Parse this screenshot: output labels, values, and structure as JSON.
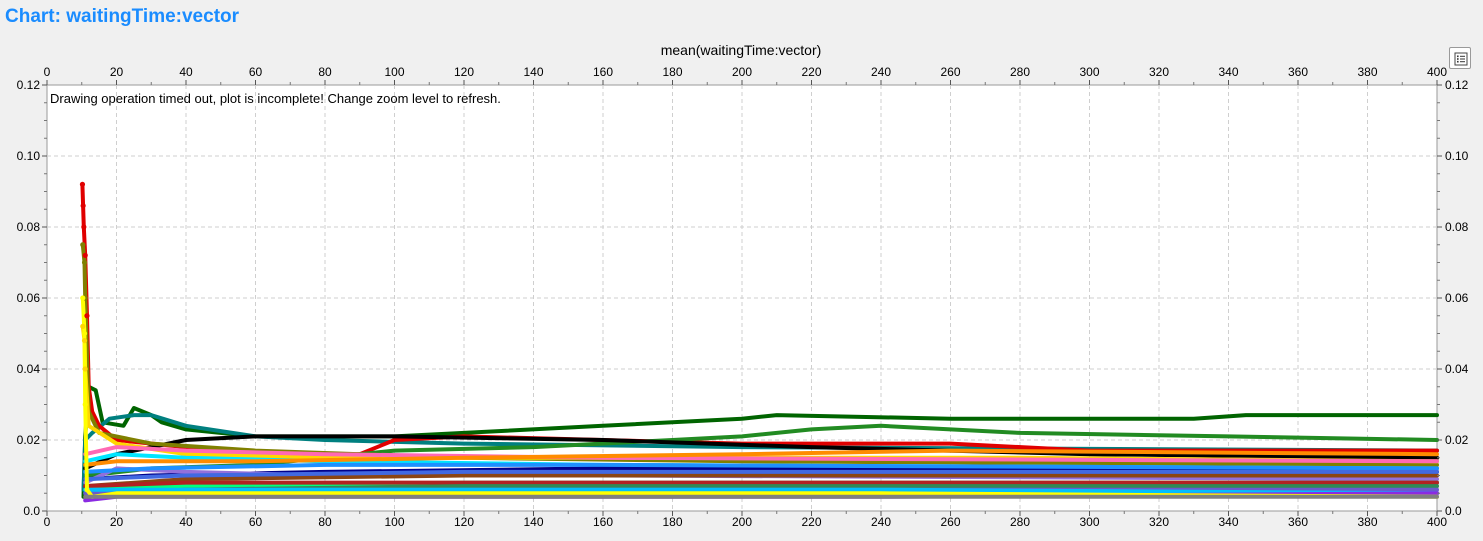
{
  "header": {
    "title": "Chart: waitingTime:vector"
  },
  "toolbar": {
    "legend_toggle_icon": "legend-list-icon"
  },
  "chart_data": {
    "type": "line",
    "title": "mean(waitingTime:vector)",
    "xlabel": "",
    "ylabel": "",
    "xlim": [
      0,
      400
    ],
    "ylim": [
      0,
      0.12
    ],
    "x_ticks": [
      0,
      20,
      40,
      60,
      80,
      100,
      120,
      140,
      160,
      180,
      200,
      220,
      240,
      260,
      280,
      300,
      320,
      340,
      360,
      380,
      400
    ],
    "y_ticks": [
      "0.0",
      "0.02",
      "0.04",
      "0.06",
      "0.08",
      "0.10",
      "0.12"
    ],
    "grid": true,
    "annotation": "Drawing operation timed out, plot is incomplete! Change zoom level to refresh.",
    "series": [
      {
        "color": "#006400",
        "points": [
          [
            10.5,
            0.004
          ],
          [
            11,
            0.021
          ],
          [
            12,
            0.035
          ],
          [
            14,
            0.034
          ],
          [
            16,
            0.025
          ],
          [
            22,
            0.024
          ],
          [
            25,
            0.029
          ],
          [
            30,
            0.027
          ],
          [
            33,
            0.025
          ],
          [
            40,
            0.023
          ],
          [
            60,
            0.021
          ],
          [
            100,
            0.021
          ],
          [
            120,
            0.022
          ],
          [
            160,
            0.024
          ],
          [
            200,
            0.026
          ],
          [
            210,
            0.027
          ],
          [
            260,
            0.026
          ],
          [
            330,
            0.026
          ],
          [
            345,
            0.027
          ],
          [
            400,
            0.027
          ]
        ]
      },
      {
        "color": "#008080",
        "points": [
          [
            10.5,
            0.006
          ],
          [
            11,
            0.02
          ],
          [
            13,
            0.022
          ],
          [
            18,
            0.026
          ],
          [
            25,
            0.027
          ],
          [
            30,
            0.027
          ],
          [
            40,
            0.024
          ],
          [
            60,
            0.021
          ],
          [
            80,
            0.02
          ],
          [
            120,
            0.019
          ],
          [
            200,
            0.018
          ],
          [
            400,
            0.017
          ]
        ]
      },
      {
        "color": "#e00000",
        "points": [
          [
            10.2,
            0.092
          ],
          [
            10.4,
            0.086
          ],
          [
            10.6,
            0.08
          ],
          [
            11,
            0.072
          ],
          [
            11.5,
            0.055
          ],
          [
            12,
            0.035
          ],
          [
            13,
            0.028
          ],
          [
            15,
            0.024
          ],
          [
            20,
            0.02
          ],
          [
            40,
            0.018
          ],
          [
            60,
            0.016
          ],
          [
            90,
            0.016
          ],
          [
            100,
            0.02
          ],
          [
            120,
            0.021
          ],
          [
            160,
            0.02
          ],
          [
            200,
            0.019
          ],
          [
            260,
            0.019
          ],
          [
            300,
            0.017
          ],
          [
            400,
            0.017
          ]
        ]
      },
      {
        "color": "#228B22",
        "points": [
          [
            12,
            0.01
          ],
          [
            30,
            0.012
          ],
          [
            60,
            0.013
          ],
          [
            100,
            0.017
          ],
          [
            140,
            0.018
          ],
          [
            180,
            0.02
          ],
          [
            200,
            0.021
          ],
          [
            220,
            0.023
          ],
          [
            240,
            0.024
          ],
          [
            260,
            0.023
          ],
          [
            280,
            0.022
          ],
          [
            340,
            0.021
          ],
          [
            400,
            0.02
          ]
        ]
      },
      {
        "color": "#000000",
        "points": [
          [
            11,
            0.012
          ],
          [
            20,
            0.016
          ],
          [
            40,
            0.02
          ],
          [
            60,
            0.021
          ],
          [
            100,
            0.021
          ],
          [
            160,
            0.02
          ],
          [
            220,
            0.018
          ],
          [
            300,
            0.016
          ],
          [
            400,
            0.015
          ]
        ]
      },
      {
        "color": "#808000",
        "points": [
          [
            10.3,
            0.075
          ],
          [
            10.8,
            0.07
          ],
          [
            11,
            0.06
          ],
          [
            12,
            0.028
          ],
          [
            15,
            0.022
          ],
          [
            30,
            0.019
          ],
          [
            60,
            0.017
          ],
          [
            120,
            0.015
          ],
          [
            200,
            0.014
          ],
          [
            400,
            0.013
          ]
        ]
      },
      {
        "color": "#ffd700",
        "points": [
          [
            10.3,
            0.052
          ],
          [
            10.8,
            0.048
          ],
          [
            11,
            0.04
          ],
          [
            12,
            0.024
          ],
          [
            20,
            0.019
          ],
          [
            40,
            0.016
          ],
          [
            80,
            0.015
          ],
          [
            160,
            0.015
          ],
          [
            280,
            0.015
          ],
          [
            400,
            0.014
          ]
        ]
      },
      {
        "color": "#ff69b4",
        "points": [
          [
            11,
            0.016
          ],
          [
            20,
            0.018
          ],
          [
            40,
            0.017
          ],
          [
            80,
            0.016
          ],
          [
            160,
            0.015
          ],
          [
            400,
            0.014
          ]
        ]
      },
      {
        "color": "#00e5ff",
        "points": [
          [
            11,
            0.014
          ],
          [
            20,
            0.016
          ],
          [
            40,
            0.015
          ],
          [
            80,
            0.014
          ],
          [
            160,
            0.013
          ],
          [
            400,
            0.012
          ]
        ]
      },
      {
        "color": "#ff8c00",
        "points": [
          [
            11,
            0.013
          ],
          [
            20,
            0.014
          ],
          [
            60,
            0.014
          ],
          [
            120,
            0.015
          ],
          [
            200,
            0.016
          ],
          [
            260,
            0.017
          ],
          [
            400,
            0.016
          ]
        ]
      },
      {
        "color": "#00008b",
        "points": [
          [
            11,
            0.009
          ],
          [
            30,
            0.01
          ],
          [
            80,
            0.011
          ],
          [
            160,
            0.012
          ],
          [
            260,
            0.012
          ],
          [
            400,
            0.011
          ]
        ]
      },
      {
        "color": "#9370db",
        "points": [
          [
            11,
            0.008
          ],
          [
            20,
            0.012
          ],
          [
            40,
            0.011
          ],
          [
            80,
            0.01
          ],
          [
            160,
            0.01
          ],
          [
            400,
            0.009
          ]
        ]
      },
      {
        "color": "#1e90ff",
        "points": [
          [
            11,
            0.011
          ],
          [
            30,
            0.012
          ],
          [
            80,
            0.013
          ],
          [
            160,
            0.013
          ],
          [
            400,
            0.012
          ]
        ]
      },
      {
        "color": "#8b4513",
        "points": [
          [
            11,
            0.007
          ],
          [
            40,
            0.009
          ],
          [
            120,
            0.01
          ],
          [
            240,
            0.01
          ],
          [
            400,
            0.01
          ]
        ]
      },
      {
        "color": "#4169e1",
        "points": [
          [
            11,
            0.009
          ],
          [
            40,
            0.01
          ],
          [
            120,
            0.011
          ],
          [
            240,
            0.011
          ],
          [
            400,
            0.011
          ]
        ]
      },
      {
        "color": "#00ff7f",
        "points": [
          [
            11,
            0.006
          ],
          [
            40,
            0.007
          ],
          [
            120,
            0.008
          ],
          [
            240,
            0.008
          ],
          [
            400,
            0.008
          ]
        ]
      },
      {
        "color": "#b22222",
        "points": [
          [
            11,
            0.007
          ],
          [
            40,
            0.008
          ],
          [
            120,
            0.008
          ],
          [
            240,
            0.008
          ],
          [
            400,
            0.008
          ]
        ]
      },
      {
        "color": "#2e8b57",
        "points": [
          [
            11,
            0.005
          ],
          [
            40,
            0.006
          ],
          [
            120,
            0.007
          ],
          [
            240,
            0.007
          ],
          [
            400,
            0.007
          ]
        ]
      },
      {
        "color": "#6a5acd",
        "points": [
          [
            11,
            0.005
          ],
          [
            40,
            0.006
          ],
          [
            120,
            0.006
          ],
          [
            240,
            0.006
          ],
          [
            400,
            0.006
          ]
        ]
      },
      {
        "color": "#00bfff",
        "points": [
          [
            11,
            0.006
          ],
          [
            40,
            0.006
          ],
          [
            120,
            0.006
          ],
          [
            240,
            0.006
          ],
          [
            400,
            0.005
          ]
        ]
      },
      {
        "color": "#8a2be2",
        "points": [
          [
            11,
            0.003
          ],
          [
            20,
            0.004
          ],
          [
            40,
            0.004
          ],
          [
            120,
            0.004
          ],
          [
            240,
            0.004
          ],
          [
            400,
            0.005
          ]
        ]
      },
      {
        "color": "#ffff00",
        "points": [
          [
            10.3,
            0.06
          ],
          [
            10.8,
            0.05
          ],
          [
            11,
            0.03
          ],
          [
            11.5,
            0.006
          ],
          [
            13,
            0.004
          ],
          [
            20,
            0.005
          ],
          [
            40,
            0.005
          ],
          [
            120,
            0.005
          ],
          [
            240,
            0.005
          ],
          [
            400,
            0.004
          ]
        ]
      },
      {
        "color": "#808080",
        "points": [
          [
            11,
            0.004
          ],
          [
            40,
            0.004
          ],
          [
            120,
            0.004
          ],
          [
            240,
            0.004
          ],
          [
            400,
            0.004
          ]
        ]
      }
    ]
  }
}
